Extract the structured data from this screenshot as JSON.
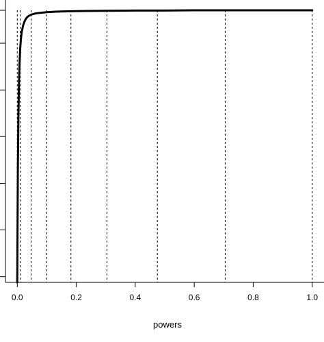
{
  "chart_data": {
    "type": "line",
    "title": "",
    "xlabel": "powers",
    "ylabel": "",
    "xlim": [
      -0.04,
      1.04
    ],
    "ylim": [
      0,
      1
    ],
    "x_ticks": [
      0.0,
      0.2,
      0.4,
      0.6,
      0.8,
      1.0
    ],
    "x_tick_labels": [
      "0.0",
      "0.2",
      "0.4",
      "0.6",
      "0.8",
      "1.0"
    ],
    "y_tick_count": 7,
    "y_tick_labels": [],
    "y_ticks": [
      0.021,
      0.193,
      0.364,
      0.536,
      0.707,
      0.879,
      1.0
    ],
    "vertical_lines": [
      0.0,
      0.01,
      0.047,
      0.1,
      0.182,
      0.304,
      0.475,
      0.705,
      1.0
    ],
    "grid": false,
    "legend": "none",
    "series": [
      {
        "x": [
          0.0,
          0.002,
          0.004,
          0.006,
          0.008,
          0.01,
          0.012,
          0.015,
          0.02,
          0.025,
          0.03,
          0.035,
          0.04,
          0.05,
          0.06,
          0.08,
          0.1,
          0.13,
          0.16,
          0.2,
          0.3,
          0.4,
          0.5,
          0.6,
          0.7,
          0.8,
          0.9,
          1.0
        ],
        "y": [
          0.0,
          0.42,
          0.62,
          0.74,
          0.81,
          0.86,
          0.89,
          0.92,
          0.945,
          0.96,
          0.97,
          0.976,
          0.98,
          0.985,
          0.988,
          0.991,
          0.993,
          0.995,
          0.996,
          0.997,
          0.998,
          0.999,
          0.999,
          1.0,
          1.0,
          1.0,
          1.0,
          1.0
        ]
      }
    ]
  }
}
